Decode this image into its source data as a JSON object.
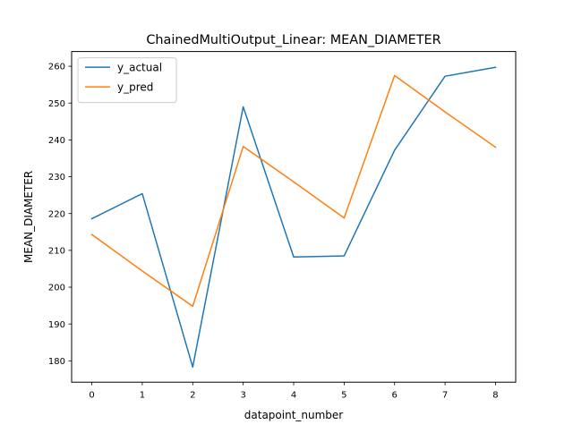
{
  "chart_data": {
    "type": "line",
    "title": "ChainedMultiOutput_Linear: MEAN_DIAMETER",
    "xlabel": "datapoint_number",
    "ylabel": "MEAN_DIAMETER",
    "x": [
      0,
      1,
      2,
      3,
      4,
      5,
      6,
      7,
      8
    ],
    "xlim": [
      -0.4,
      8.4
    ],
    "ylim": [
      174.2,
      264.0
    ],
    "xticks": [
      0,
      1,
      2,
      3,
      4,
      5,
      6,
      7,
      8
    ],
    "yticks": [
      180,
      190,
      200,
      210,
      220,
      230,
      240,
      250,
      260
    ],
    "grid": false,
    "legend_position": "upper-left",
    "series": [
      {
        "name": "y_actual",
        "color": "#1f77b4",
        "values": [
          218.6,
          225.4,
          178.3,
          249.0,
          208.2,
          208.5,
          237.2,
          257.3,
          259.7
        ]
      },
      {
        "name": "y_pred",
        "color": "#ff7f0e",
        "values": [
          214.3,
          204.4,
          194.8,
          238.2,
          228.6,
          218.8,
          257.5,
          247.6,
          238.0
        ]
      }
    ]
  }
}
